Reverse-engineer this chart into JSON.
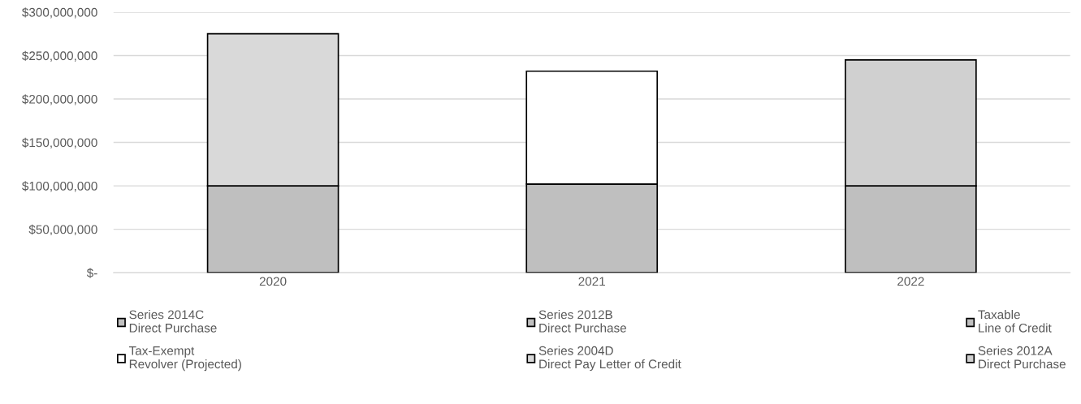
{
  "chart_data": {
    "type": "bar",
    "stacked": true,
    "categories": [
      "2020",
      "2021",
      "2022"
    ],
    "series": [
      {
        "name": "Series 2014C\nDirect Purchase",
        "color": "#bfbfbf",
        "values": [
          100000000,
          102000000,
          100000000
        ]
      },
      {
        "name": "Series 2012B\nDirect Purchase",
        "color": "#bfbfbf",
        "values": [
          null,
          null,
          null
        ]
      },
      {
        "name": "Taxable\nLine of Credit",
        "color": "#bfbfbf",
        "values": [
          null,
          null,
          null
        ]
      },
      {
        "name": "Tax-Exempt\nRevolver (Projected)",
        "color": "#ffffff",
        "values": [
          null,
          130000000,
          null
        ]
      },
      {
        "name": "Series 2004D\nDirect Pay Letter of Credit",
        "color": "#d9d9d9",
        "values": [
          175000000,
          null,
          null
        ]
      },
      {
        "name": "Series 2012A\nDirect Purchase",
        "color": "#d0d0d0",
        "values": [
          null,
          null,
          145000000
        ]
      }
    ],
    "ylim": [
      0,
      300000000
    ],
    "yticks": [
      {
        "value": 0,
        "label": "$-"
      },
      {
        "value": 50000000,
        "label": "$50,000,000"
      },
      {
        "value": 100000000,
        "label": "$100,000,000"
      },
      {
        "value": 150000000,
        "label": "$150,000,000"
      },
      {
        "value": 200000000,
        "label": "$200,000,000"
      },
      {
        "value": 250000000,
        "label": "$250,000,000"
      },
      {
        "value": 300000000,
        "label": "$300,000,000"
      }
    ],
    "grid": "y",
    "legend": "bottom"
  }
}
